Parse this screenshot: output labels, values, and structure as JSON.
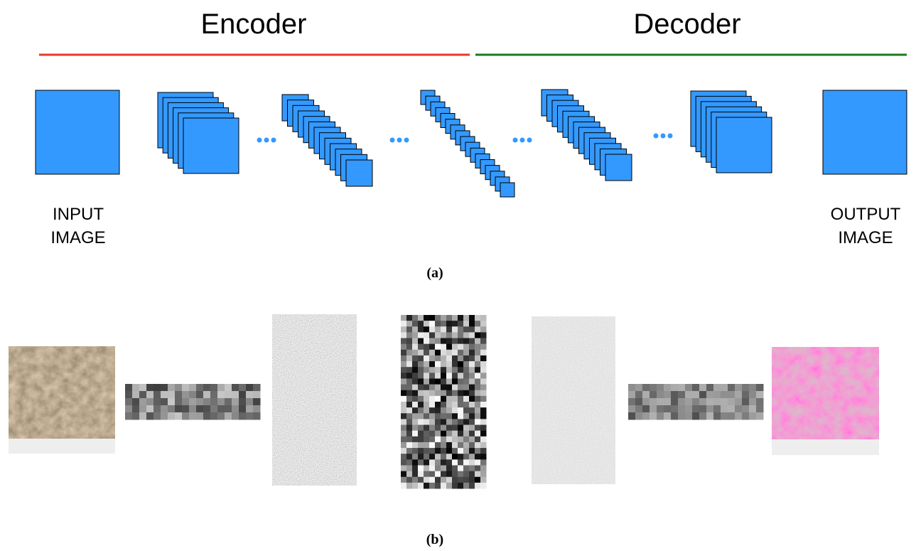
{
  "header": {
    "encoder": "Encoder",
    "decoder": "Decoder"
  },
  "labels": {
    "input": [
      "INPUT",
      "IMAGE"
    ],
    "output": [
      "OUTPUT",
      "IMAGE"
    ]
  },
  "captions": {
    "a": "(a)",
    "b": "(b)"
  }
}
